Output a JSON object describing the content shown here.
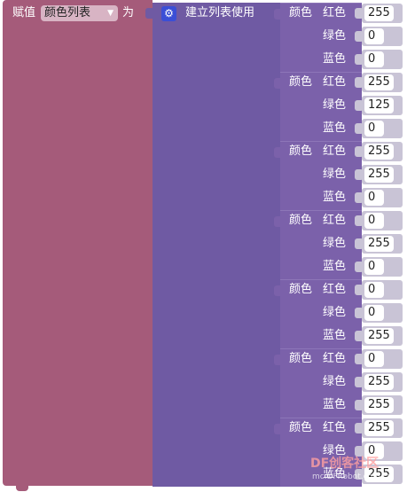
{
  "assign": {
    "label": "赋值",
    "variable": "颜色列表",
    "to": "为"
  },
  "make_list": {
    "label": "建立列表使用",
    "items": [
      {
        "label": "颜色",
        "red_label": "红色",
        "green_label": "绿色",
        "blue_label": "蓝色",
        "red": 255,
        "green": 0,
        "blue": 0
      },
      {
        "label": "颜色",
        "red_label": "红色",
        "green_label": "绿色",
        "blue_label": "蓝色",
        "red": 255,
        "green": 125,
        "blue": 0
      },
      {
        "label": "颜色",
        "red_label": "红色",
        "green_label": "绿色",
        "blue_label": "蓝色",
        "red": 255,
        "green": 255,
        "blue": 0
      },
      {
        "label": "颜色",
        "red_label": "红色",
        "green_label": "绿色",
        "blue_label": "蓝色",
        "red": 0,
        "green": 255,
        "blue": 0
      },
      {
        "label": "颜色",
        "red_label": "红色",
        "green_label": "绿色",
        "blue_label": "蓝色",
        "red": 0,
        "green": 0,
        "blue": 255
      },
      {
        "label": "颜色",
        "red_label": "红色",
        "green_label": "绿色",
        "blue_label": "蓝色",
        "red": 0,
        "green": 255,
        "blue": 255
      },
      {
        "label": "颜色",
        "red_label": "红色",
        "green_label": "绿色",
        "blue_label": "蓝色",
        "red": 255,
        "green": 0,
        "blue": 255
      }
    ]
  },
  "watermark": {
    "brand": "DF创客社区",
    "url": "mc.DFRobot.com.cn"
  }
}
